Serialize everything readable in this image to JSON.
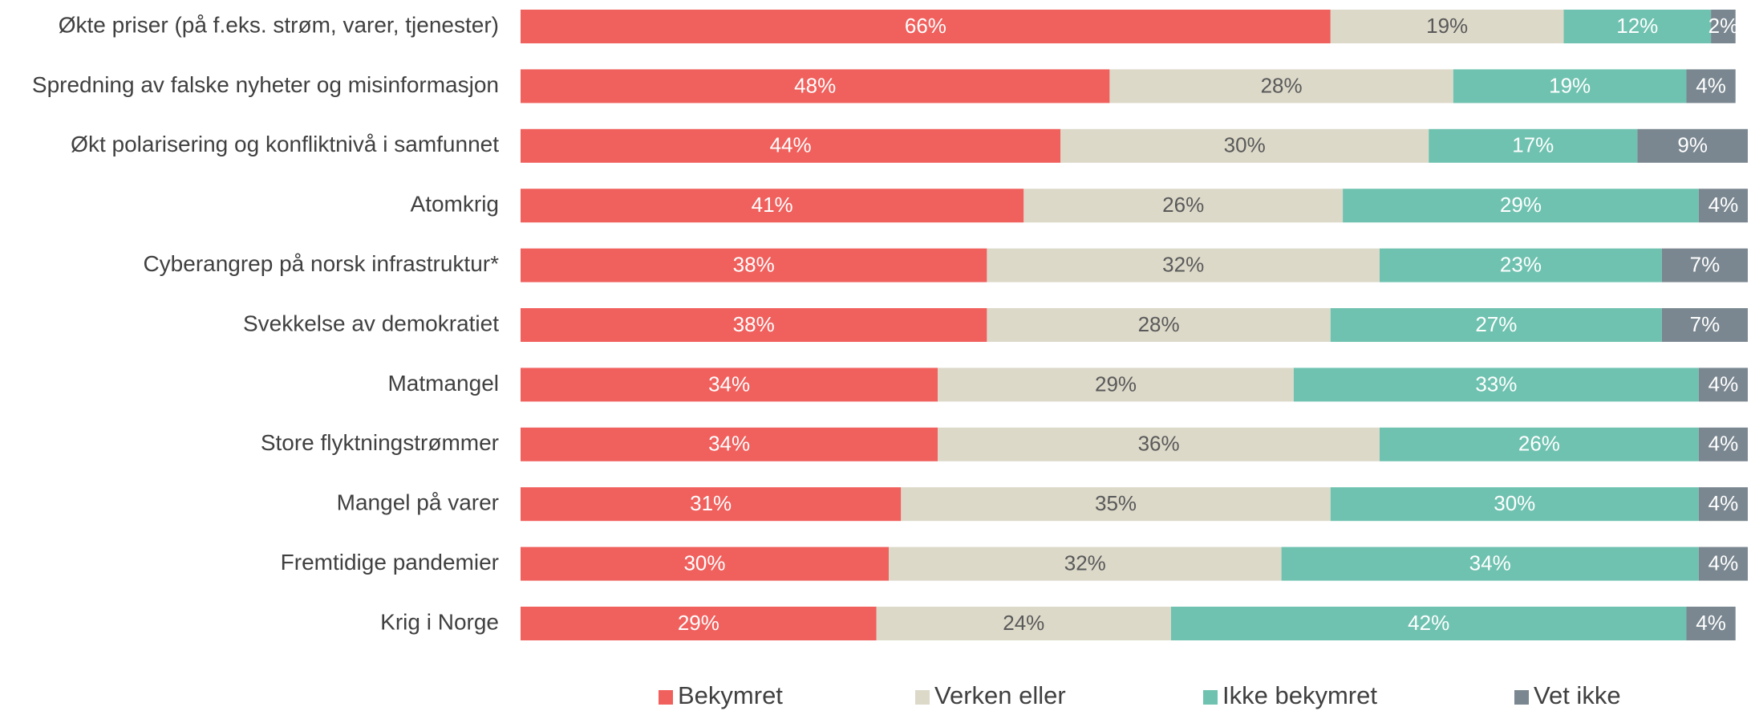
{
  "chart_data": {
    "type": "stacked-bar-horizontal",
    "categories": [
      "Økte priser (på f.eks. strøm, varer, tjenester)",
      "Spredning av falske nyheter og misinformasjon",
      "Økt polarisering og konfliktnivå i samfunnet",
      "Atomkrig",
      "Cyberangrep på norsk infrastruktur*",
      "Svekkelse av demokratiet",
      "Matmangel",
      "Store flyktningstrømmer",
      "Mangel på varer",
      "Fremtidige pandemier",
      "Krig i Norge"
    ],
    "xlim": [
      0,
      100
    ],
    "legend": "bottom",
    "series": [
      {
        "name": "Bekymret",
        "color": "#f0605d",
        "label_color": "#ffffff",
        "values": [
          66,
          48,
          44,
          41,
          38,
          38,
          34,
          34,
          31,
          30,
          29
        ],
        "value_labels": [
          "66%",
          "48%",
          "44%",
          "41%",
          "38%",
          "38%",
          "34%",
          "34%",
          "31%",
          "30%",
          "29%"
        ]
      },
      {
        "name": "Verken eller",
        "color": "#dcd9c9",
        "label_color": "#595959",
        "values": [
          19,
          28,
          30,
          26,
          32,
          28,
          29,
          36,
          35,
          32,
          24
        ],
        "value_labels": [
          "19%",
          "28%",
          "30%",
          "26%",
          "32%",
          "28%",
          "29%",
          "36%",
          "35%",
          "32%",
          "24%"
        ]
      },
      {
        "name": "Ikke bekymret",
        "color": "#6fc2b0",
        "label_color": "#ffffff",
        "values": [
          12,
          19,
          17,
          29,
          23,
          27,
          33,
          26,
          30,
          34,
          42
        ],
        "value_labels": [
          "12%",
          "19%",
          "17%",
          "29%",
          "23%",
          "27%",
          "33%",
          "26%",
          "30%",
          "34%",
          "42%"
        ]
      },
      {
        "name": "Vet ikke",
        "color": "#7a8790",
        "label_color": "#ffffff",
        "values": [
          2,
          4,
          9,
          4,
          7,
          7,
          4,
          4,
          4,
          4,
          4
        ],
        "value_labels": [
          "2%",
          "4%",
          "9%",
          "4%",
          "7%",
          "7%",
          "4%",
          "4%",
          "4%",
          "4%",
          "4%"
        ]
      }
    ]
  }
}
